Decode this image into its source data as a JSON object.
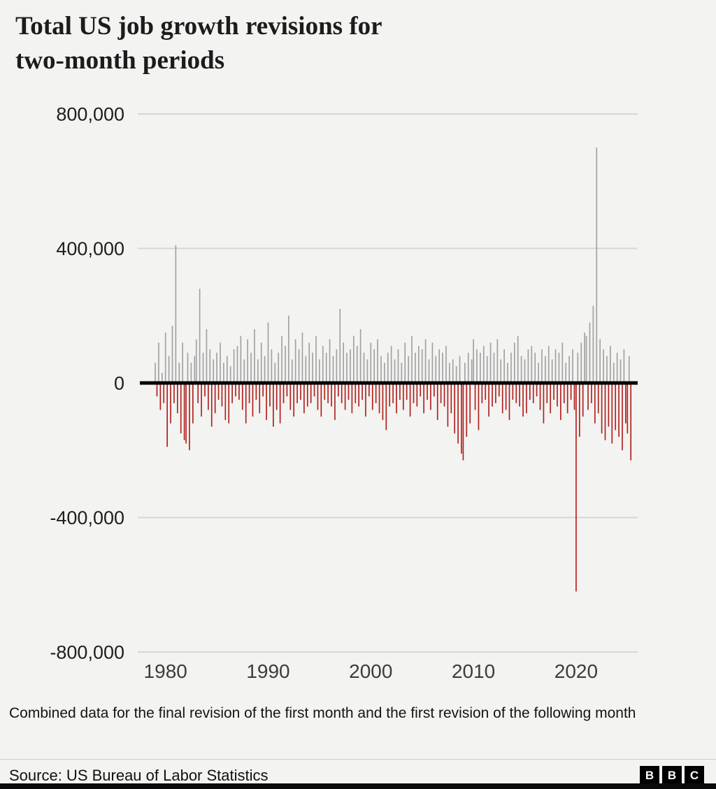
{
  "header": {
    "title_lines": [
      "Total US job growth revisions for",
      "two-month periods"
    ]
  },
  "footnote": "Combined data for the final revision of the first month and the first revision of the following month",
  "source": {
    "label": "Source: US Bureau of Labor Statistics"
  },
  "logo": {
    "letters": [
      "B",
      "B",
      "C"
    ]
  },
  "chart_data": {
    "type": "bar",
    "title": "Total US job growth revisions for two-month periods",
    "xlabel": "",
    "ylabel": "",
    "ylim": [
      -800000,
      800000
    ],
    "x_domain": [
      1977.5,
      2026
    ],
    "x_start_year": 1979,
    "bars_per_year": 6,
    "grid": true,
    "positive_color": "#a1a1a1",
    "negative_color": "#b01f1c",
    "zero_line_color": "#000000",
    "grid_color": "#d6d6d4",
    "y_ticks": [
      {
        "value": 800000,
        "label": "800,000"
      },
      {
        "value": 400000,
        "label": "400,000"
      },
      {
        "value": 0,
        "label": "0"
      },
      {
        "value": -400000,
        "label": "-400,000"
      },
      {
        "value": -800000,
        "label": "-800,000"
      }
    ],
    "x_ticks": [
      {
        "year": 1980,
        "label": "1980"
      },
      {
        "year": 1990,
        "label": "1990"
      },
      {
        "year": 2000,
        "label": "2000"
      },
      {
        "year": 2010,
        "label": "2010"
      },
      {
        "year": 2020,
        "label": "2020"
      }
    ],
    "values": [
      60000,
      -40000,
      120000,
      -80000,
      30000,
      -60000,
      150000,
      -190000,
      80000,
      -120000,
      170000,
      -60000,
      410000,
      -90000,
      60000,
      -150000,
      120000,
      -170000,
      -180000,
      90000,
      -200000,
      60000,
      -120000,
      80000,
      130000,
      -60000,
      280000,
      -100000,
      90000,
      -40000,
      160000,
      -80000,
      100000,
      -130000,
      70000,
      -90000,
      90000,
      -50000,
      120000,
      -70000,
      60000,
      -110000,
      80000,
      -120000,
      50000,
      -60000,
      100000,
      -40000,
      110000,
      -50000,
      140000,
      -80000,
      70000,
      -120000,
      130000,
      -60000,
      90000,
      -100000,
      160000,
      -50000,
      70000,
      -90000,
      120000,
      -40000,
      80000,
      -110000,
      180000,
      -70000,
      100000,
      -130000,
      60000,
      -80000,
      90000,
      -120000,
      140000,
      -60000,
      110000,
      -40000,
      200000,
      -80000,
      70000,
      -100000,
      130000,
      -60000,
      100000,
      -50000,
      150000,
      -90000,
      80000,
      -70000,
      120000,
      -60000,
      90000,
      -40000,
      140000,
      -80000,
      70000,
      -100000,
      110000,
      -50000,
      90000,
      -60000,
      130000,
      -70000,
      80000,
      -110000,
      100000,
      -40000,
      220000,
      -60000,
      120000,
      -80000,
      90000,
      -50000,
      100000,
      -90000,
      140000,
      -60000,
      110000,
      -70000,
      160000,
      -50000,
      90000,
      -100000,
      70000,
      -40000,
      120000,
      -80000,
      100000,
      -60000,
      130000,
      -90000,
      80000,
      -110000,
      60000,
      -140000,
      90000,
      -70000,
      110000,
      -60000,
      70000,
      -90000,
      100000,
      -50000,
      60000,
      -80000,
      120000,
      -50000,
      80000,
      -100000,
      140000,
      -60000,
      90000,
      -70000,
      110000,
      -40000,
      100000,
      -90000,
      130000,
      -50000,
      70000,
      -80000,
      120000,
      -40000,
      80000,
      -110000,
      100000,
      -60000,
      90000,
      -70000,
      110000,
      -130000,
      60000,
      -90000,
      70000,
      -150000,
      50000,
      -180000,
      80000,
      -210000,
      -230000,
      60000,
      -160000,
      90000,
      -120000,
      70000,
      130000,
      -80000,
      100000,
      -140000,
      90000,
      -60000,
      110000,
      -50000,
      80000,
      -100000,
      120000,
      -70000,
      90000,
      -60000,
      130000,
      -40000,
      70000,
      -90000,
      100000,
      -80000,
      60000,
      -110000,
      90000,
      -50000,
      120000,
      -60000,
      140000,
      -70000,
      80000,
      -100000,
      70000,
      -90000,
      100000,
      -50000,
      110000,
      -60000,
      90000,
      -40000,
      60000,
      -80000,
      100000,
      -120000,
      80000,
      -60000,
      110000,
      -90000,
      70000,
      -50000,
      100000,
      -70000,
      90000,
      -110000,
      120000,
      -60000,
      60000,
      -90000,
      80000,
      -50000,
      100000,
      -80000,
      -620000,
      90000,
      -160000,
      120000,
      -100000,
      150000,
      140000,
      -80000,
      180000,
      -60000,
      230000,
      -120000,
      700000,
      -90000,
      130000,
      -150000,
      100000,
      -170000,
      80000,
      -130000,
      110000,
      -180000,
      60000,
      -140000,
      90000,
      -160000,
      70000,
      -200000,
      100000,
      -120000,
      -150000,
      80000,
      -230000
    ]
  }
}
